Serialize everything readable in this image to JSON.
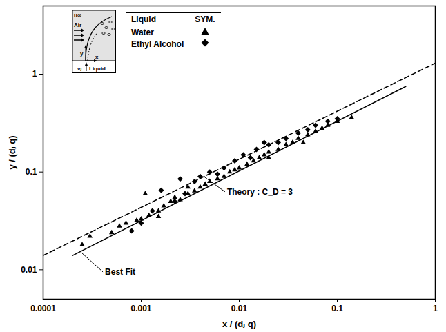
{
  "chart_data": {
    "type": "scatter",
    "xlabel": "x / (dⱼ q)",
    "ylabel": "y / (dⱼ q)",
    "log": true,
    "xlim": [
      0.0001,
      1
    ],
    "ylim": [
      0.005,
      5
    ],
    "xticks": [
      0.0001,
      0.001,
      0.01,
      0.1,
      1
    ],
    "yticks": [
      0.01,
      0.1,
      1
    ],
    "legend": "top-left",
    "legend_headers": [
      "Liquid",
      "SYM."
    ],
    "inset_labels": [
      "u∞",
      "Air",
      "y",
      "x",
      "vⱼ",
      "Liquid"
    ],
    "series": [
      {
        "name": "Water",
        "type": "scatter",
        "marker": "triangle",
        "color": "#000000",
        "x": [
          0.00025,
          0.0003,
          0.0005,
          0.0006,
          0.0007,
          0.0009,
          0.001,
          0.0012,
          0.0015,
          0.0017,
          0.002,
          0.0022,
          0.0025,
          0.003,
          0.0035,
          0.004,
          0.0045,
          0.005,
          0.006,
          0.007,
          0.008,
          0.009,
          0.01,
          0.012,
          0.014,
          0.016,
          0.018,
          0.02,
          0.025,
          0.03,
          0.035,
          0.04,
          0.05,
          0.06,
          0.07,
          0.08,
          0.1,
          0.14,
          0.0011,
          0.0015,
          0.003,
          0.02,
          0.045
        ],
        "y": [
          0.018,
          0.022,
          0.024,
          0.028,
          0.03,
          0.032,
          0.033,
          0.036,
          0.04,
          0.045,
          0.05,
          0.055,
          0.052,
          0.06,
          0.064,
          0.07,
          0.075,
          0.08,
          0.085,
          0.09,
          0.1,
          0.105,
          0.11,
          0.12,
          0.13,
          0.14,
          0.15,
          0.16,
          0.17,
          0.19,
          0.2,
          0.22,
          0.24,
          0.26,
          0.28,
          0.3,
          0.33,
          0.36,
          0.06,
          0.035,
          0.07,
          0.14,
          0.2
        ]
      },
      {
        "name": "Ethyl Alcohol",
        "type": "scatter",
        "marker": "diamond",
        "color": "#000000",
        "x": [
          0.0008,
          0.001,
          0.0013,
          0.0016,
          0.0022,
          0.0028,
          0.0035,
          0.004,
          0.005,
          0.006,
          0.007,
          0.009,
          0.011,
          0.013,
          0.015,
          0.02,
          0.025,
          0.03,
          0.04,
          0.05,
          0.06,
          0.08,
          0.1,
          0.0025,
          0.018
        ],
        "y": [
          0.025,
          0.03,
          0.04,
          0.065,
          0.05,
          0.06,
          0.08,
          0.09,
          0.1,
          0.095,
          0.11,
          0.13,
          0.15,
          0.14,
          0.17,
          0.19,
          0.2,
          0.22,
          0.25,
          0.27,
          0.3,
          0.33,
          0.35,
          0.085,
          0.2
        ]
      },
      {
        "name": "Best Fit",
        "type": "line",
        "line_style": "solid",
        "color": "#000000",
        "x": [
          0.0002,
          0.5
        ],
        "y": [
          0.014,
          0.75
        ]
      },
      {
        "name": "Theory : C_D = 3",
        "type": "line",
        "line_style": "dashed",
        "color": "#000000",
        "x": [
          0.0001,
          1
        ],
        "y": [
          0.014,
          1.3
        ]
      }
    ]
  }
}
